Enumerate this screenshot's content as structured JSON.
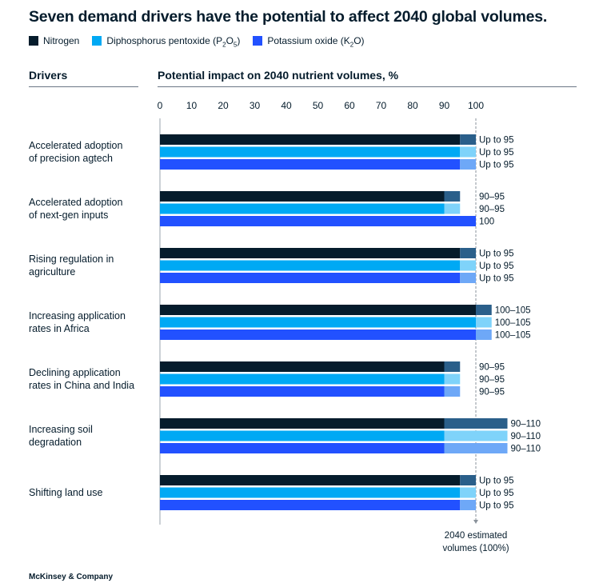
{
  "title": "Seven demand drivers have the potential to affect 2040 global volumes.",
  "legend": [
    {
      "prefix": "Nitrogen",
      "sub1": "",
      "mid": "",
      "sub2": "",
      "suffix": "",
      "color": "#051c2c"
    },
    {
      "prefix": "Diphosphorus pentoxide (P",
      "sub1": "2",
      "mid": "O",
      "sub2": "5",
      "suffix": ")",
      "color": "#00a9f4"
    },
    {
      "prefix": "Potassium oxide (K",
      "sub1": "2",
      "mid": "O)",
      "sub2": "",
      "suffix": "",
      "color": "#2251ff"
    }
  ],
  "headers": {
    "drivers": "Drivers",
    "impact": "Potential impact on 2040 nutrient volumes, %"
  },
  "reference_label": [
    "2040 estimated",
    "volumes (100%)"
  ],
  "footer": "McKinsey & Company",
  "chart_data": {
    "type": "bar",
    "orientation": "horizontal",
    "title": "Potential impact on 2040 nutrient volumes, %",
    "xlim": [
      0,
      100
    ],
    "xticks": [
      0,
      10,
      20,
      30,
      40,
      50,
      60,
      70,
      80,
      90,
      100
    ],
    "reference_line": 100,
    "categories": [
      [
        "Accelerated adoption",
        "of precision agtech"
      ],
      [
        "Accelerated adoption",
        "of next-gen inputs"
      ],
      [
        "Rising regulation in",
        "agriculture"
      ],
      [
        "Increasing application",
        "rates in Africa"
      ],
      [
        "Declining application",
        "rates in China and India"
      ],
      [
        "Increasing soil",
        "degradation"
      ],
      [
        "Shifting land use"
      ]
    ],
    "series": [
      {
        "name": "Nitrogen",
        "color": "#051c2c",
        "range_color": "#2a5f8a",
        "low": [
          95,
          90,
          95,
          100,
          90,
          90,
          95
        ],
        "high": [
          100,
          95,
          100,
          105,
          95,
          110,
          100
        ],
        "labels": [
          "Up to 95",
          "90–95",
          "Up to 95",
          "100–105",
          "90–95",
          "90–110",
          "Up to 95"
        ]
      },
      {
        "name": "Diphosphorus pentoxide (P2O5)",
        "color": "#00a9f4",
        "range_color": "#7fd3fa",
        "low": [
          95,
          90,
          95,
          100,
          90,
          90,
          95
        ],
        "high": [
          100,
          95,
          100,
          105,
          95,
          110,
          100
        ],
        "labels": [
          "Up to 95",
          "90–95",
          "Up to 95",
          "100–105",
          "90–95",
          "90–110",
          "Up to 95"
        ]
      },
      {
        "name": "Potassium oxide (K2O)",
        "color": "#2251ff",
        "range_color": "#6ea8f7",
        "low": [
          95,
          100,
          95,
          100,
          90,
          90,
          95
        ],
        "high": [
          100,
          100,
          100,
          105,
          95,
          110,
          100
        ],
        "labels": [
          "Up to 95",
          "100",
          "Up to 95",
          "100–105",
          "90–95",
          "90–110",
          "Up to 95"
        ]
      }
    ]
  }
}
